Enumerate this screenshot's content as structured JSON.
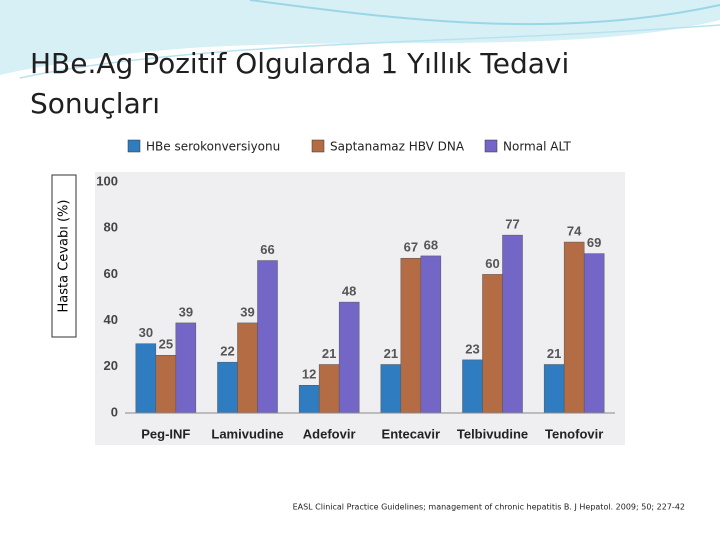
{
  "chart_data": {
    "type": "bar",
    "title": "HBe.Ag Pozitif Olgularda 1 Yıllık Tedavi Sonuçları",
    "y_label": "Hasta Cevabı (%)",
    "source": "EASL Clinical Practice Guidelines; management of chronic hepatitis B. J Hepatol. 2009; 50; 227-42",
    "categories": [
      "Peg-INF",
      "Lamivudine",
      "Adefovir",
      "Entecavir",
      "Telbivudine",
      "Tenofovir"
    ],
    "series": [
      {
        "name": "HBe serokonversiyonu",
        "color": "#2f7cc0",
        "values": [
          30,
          22,
          12,
          21,
          23,
          21
        ]
      },
      {
        "name": "Saptanamaz HBV DNA",
        "color": "#b46c45",
        "values": [
          25,
          39,
          21,
          67,
          60,
          74
        ]
      },
      {
        "name": "Normal ALT",
        "color": "#7466c6",
        "values": [
          39,
          66,
          48,
          68,
          77,
          69
        ]
      }
    ],
    "ylim": [
      0,
      100
    ],
    "yticks": [
      0,
      20,
      40,
      60,
      80,
      100
    ],
    "grid": false
  }
}
